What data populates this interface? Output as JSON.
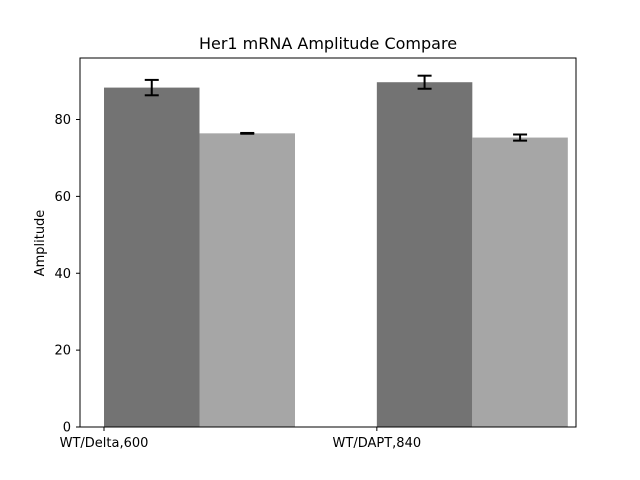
{
  "chart_data": {
    "type": "bar",
    "title": "Her1 mRNA Amplitude Compare",
    "xlabel": "",
    "ylabel": "Amplitude",
    "categories": [
      "WT/Delta,600",
      "WT/DAPT,840"
    ],
    "ylim": [
      0,
      96
    ],
    "yticks": [
      0,
      20,
      40,
      60,
      80
    ],
    "grid": false,
    "legend": "none",
    "series": [
      {
        "values": [
          88.3,
          89.7
        ],
        "errors": [
          2.0,
          1.7
        ],
        "color": "#737373"
      },
      {
        "values": [
          76.4,
          75.3
        ],
        "errors": [
          0.1,
          0.8
        ],
        "color": "#a6a6a6"
      }
    ]
  }
}
